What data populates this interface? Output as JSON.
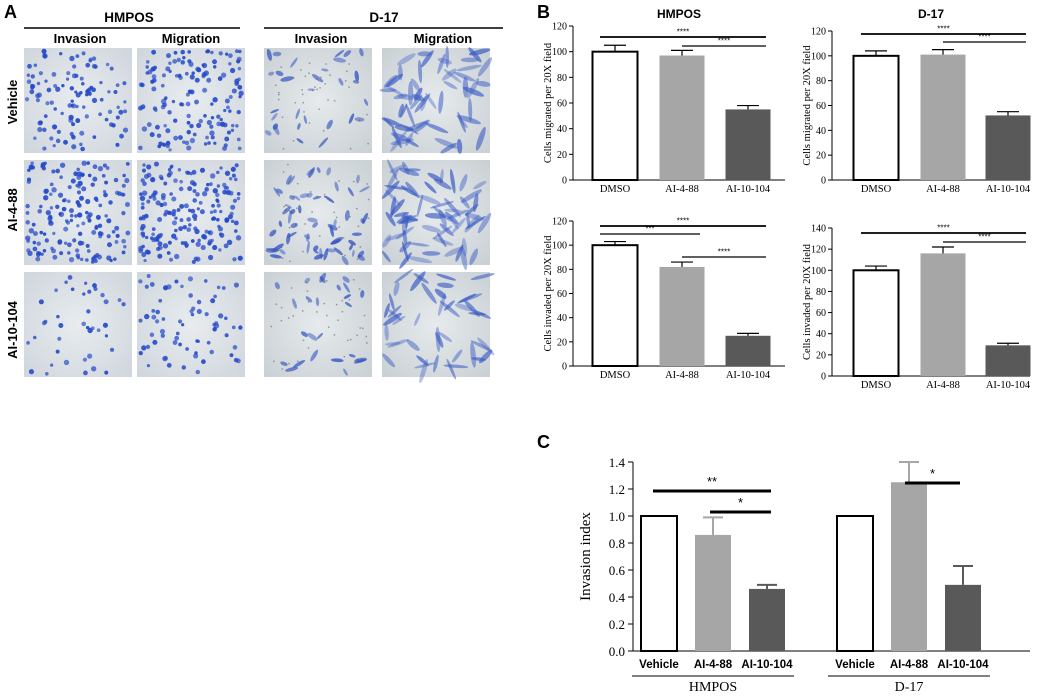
{
  "panel_labels": {
    "a": "A",
    "b": "B",
    "c": "C"
  },
  "panel_a": {
    "cell_lines": [
      "HMPOS",
      "D-17"
    ],
    "columns": [
      "Invasion",
      "Migration",
      "Invasion",
      "Migration"
    ],
    "rows": [
      "Vehicle",
      "AI-4-88",
      "AI-10-104"
    ]
  },
  "chart_data": [
    {
      "type": "bar",
      "title": "HMPOS",
      "ylabel": "Cells migrated per 20X field",
      "categories": [
        "DMSO",
        "AI-4-88",
        "AI-10-104"
      ],
      "values": [
        100,
        97,
        55
      ],
      "errors": [
        5,
        4,
        3
      ],
      "colors": [
        "#ffffff",
        "#a6a6a6",
        "#595959"
      ],
      "ylim": [
        0,
        120
      ],
      "yticks": [
        0,
        20,
        40,
        60,
        80,
        100,
        120
      ],
      "significance": [
        {
          "from": 0,
          "to": 2,
          "label": "****"
        },
        {
          "from": 1,
          "to": 2,
          "label": "****"
        }
      ]
    },
    {
      "type": "bar",
      "title": "D-17",
      "ylabel": "Cells migrated per 20X field",
      "categories": [
        "DMSO",
        "AI-4-88",
        "AI-10-104"
      ],
      "values": [
        100,
        101,
        52
      ],
      "errors": [
        4,
        4,
        3
      ],
      "colors": [
        "#ffffff",
        "#a6a6a6",
        "#595959"
      ],
      "ylim": [
        0,
        120
      ],
      "yticks": [
        0,
        20,
        40,
        60,
        80,
        100,
        120
      ],
      "significance": [
        {
          "from": 0,
          "to": 2,
          "label": "****"
        },
        {
          "from": 1,
          "to": 2,
          "label": "****"
        }
      ]
    },
    {
      "type": "bar",
      "title": "",
      "ylabel": "Cells invaded per 20X field",
      "categories": [
        "DMSO",
        "AI-4-88",
        "AI-10-104"
      ],
      "values": [
        100,
        82,
        25
      ],
      "errors": [
        3,
        4,
        2
      ],
      "colors": [
        "#ffffff",
        "#a6a6a6",
        "#595959"
      ],
      "ylim": [
        0,
        120
      ],
      "yticks": [
        0,
        20,
        40,
        60,
        80,
        100,
        120
      ],
      "significance": [
        {
          "from": 0,
          "to": 2,
          "label": "****"
        },
        {
          "from": 0,
          "to": 1,
          "label": "***"
        },
        {
          "from": 1,
          "to": 2,
          "label": "****"
        }
      ]
    },
    {
      "type": "bar",
      "title": "",
      "ylabel": "Cells invaded per 20X field",
      "categories": [
        "DMSO",
        "AI-4-88",
        "AI-10-104"
      ],
      "values": [
        100,
        116,
        29
      ],
      "errors": [
        4,
        6,
        2
      ],
      "colors": [
        "#ffffff",
        "#a6a6a6",
        "#595959"
      ],
      "ylim": [
        0,
        140
      ],
      "yticks": [
        0,
        20,
        40,
        60,
        80,
        100,
        120,
        140
      ],
      "significance": [
        {
          "from": 0,
          "to": 2,
          "label": "****"
        },
        {
          "from": 1,
          "to": 2,
          "label": "****"
        }
      ]
    },
    {
      "type": "bar",
      "title": "",
      "ylabel": "Invasion index",
      "groups": [
        "HMPOS",
        "D-17"
      ],
      "categories": [
        "Vehicle",
        "AI-4-88",
        "AI-10-104"
      ],
      "values": [
        [
          1.0,
          0.86,
          0.46
        ],
        [
          1.0,
          1.25,
          0.49
        ]
      ],
      "errors": [
        [
          0,
          0.13,
          0.03
        ],
        [
          0,
          0.15,
          0.14
        ]
      ],
      "colors": [
        "#ffffff",
        "#a6a6a6",
        "#595959"
      ],
      "ylim": [
        0,
        1.4
      ],
      "yticks": [
        "0.0",
        "0.2",
        "0.4",
        "0.6",
        "0.8",
        "1.0",
        "1.2",
        "1.4"
      ],
      "significance": [
        {
          "group": 0,
          "from": 0,
          "to": 2,
          "label": "**"
        },
        {
          "group": 0,
          "from": 1,
          "to": 2,
          "label": "*"
        },
        {
          "group": 1,
          "from": 1,
          "to": 2,
          "label": "*"
        }
      ]
    }
  ]
}
